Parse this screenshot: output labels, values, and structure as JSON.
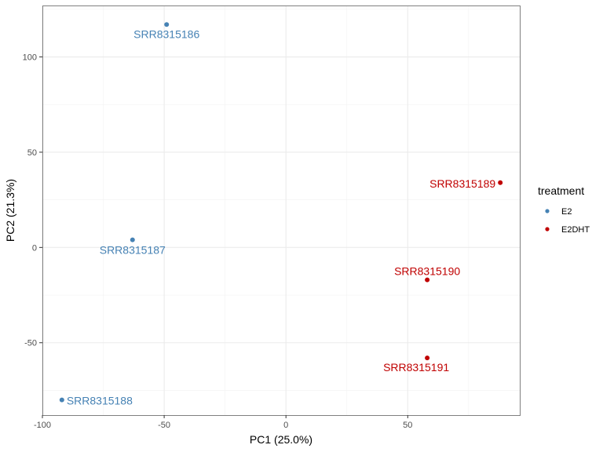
{
  "chart_data": {
    "type": "scatter",
    "title": "",
    "xlabel": "PC1 (25.0%)",
    "ylabel": "PC2 (21.3%)",
    "xlim": [
      -100,
      96
    ],
    "ylim": [
      -88,
      127
    ],
    "x_ticks": [
      -100,
      -50,
      0,
      50
    ],
    "x_tick_labels": [
      "-100",
      "-50",
      "0",
      "50"
    ],
    "y_ticks": [
      -50,
      0,
      50,
      100
    ],
    "y_tick_labels": [
      "-50",
      "0",
      "50",
      "100"
    ],
    "grid": true,
    "legend": {
      "title": "treatment",
      "position": "right",
      "entries": [
        {
          "name": "E2",
          "color": "#4682b4"
        },
        {
          "name": "E2DHT",
          "color": "#c00000"
        }
      ]
    },
    "points": [
      {
        "label": "SRR8315186",
        "x": -49,
        "y": 117,
        "group": "E2"
      },
      {
        "label": "SRR8315187",
        "x": -63,
        "y": 4,
        "group": "E2"
      },
      {
        "label": "SRR8315188",
        "x": -92,
        "y": -80,
        "group": "E2"
      },
      {
        "label": "SRR8315189",
        "x": 88,
        "y": 34,
        "group": "E2DHT"
      },
      {
        "label": "SRR8315190",
        "x": 58,
        "y": -17,
        "group": "E2DHT"
      },
      {
        "label": "SRR8315191",
        "x": 58,
        "y": -58,
        "group": "E2DHT"
      }
    ]
  }
}
